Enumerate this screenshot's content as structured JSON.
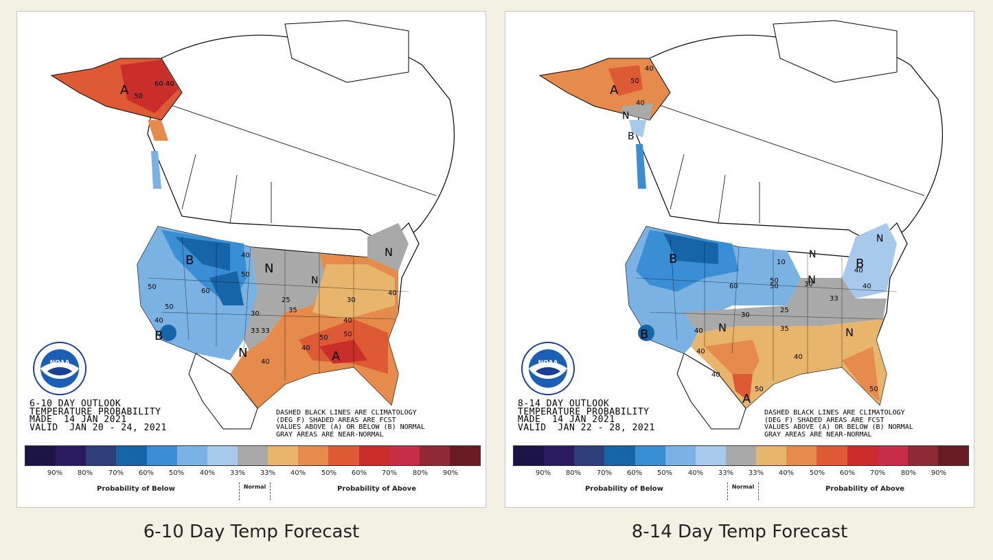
{
  "colors": {
    "below": [
      "#1d1446",
      "#2a1a5e",
      "#2e3e7a",
      "#1765a9",
      "#3a8fd4",
      "#7ab3e3",
      "#a7c9ec"
    ],
    "normal": "#a9a9a9",
    "above": [
      "#e8b56c",
      "#e58b4b",
      "#dd5a34",
      "#c92e2b",
      "#c72d47",
      "#8d2a36",
      "#6a1c24"
    ]
  },
  "legend": {
    "percentages": [
      "90%",
      "80%",
      "70%",
      "60%",
      "50%",
      "40%",
      "33%",
      "33%",
      "40%",
      "50%",
      "60%",
      "70%",
      "80%",
      "90%"
    ],
    "below_label": "Probability of Below",
    "normal_label": "Normal",
    "above_label": "Probability of Above",
    "note_lines": [
      "DASHED BLACK LINES ARE CLIMATOLOGY",
      "(DEG F) SHADED AREAS ARE FCST",
      "VALUES ABOVE (A) OR BELOW (B) NORMAL",
      "GRAY AREAS ARE NEAR-NORMAL"
    ]
  },
  "noaa_label": "NOAA",
  "maps": [
    {
      "caption": "6-10 Day Temp Forecast",
      "outlook_lines": [
        "6-10 DAY OUTLOOK",
        "TEMPERATURE PROBABILITY",
        "MADE  14 JAN 2021",
        "VALID  JAN 20 - 24, 2021"
      ],
      "contour_labels": [
        "40",
        "50",
        "60",
        "40",
        "50",
        "50",
        "60",
        "50",
        "40",
        "30",
        "25",
        "33",
        "35",
        "40",
        "30",
        "40",
        "50",
        "40",
        "33",
        "40",
        "50"
      ],
      "region_letters": [
        "A",
        "B",
        "N",
        "N",
        "N",
        "A",
        "B",
        "N"
      ]
    },
    {
      "caption": "8-14 Day Temp Forecast",
      "outlook_lines": [
        "8-14 DAY OUTLOOK",
        "TEMPERATURE PROBABILITY",
        "MADE  14 JAN 2021",
        "VALID  JAN 22 - 28, 2021"
      ],
      "contour_labels": [
        "40",
        "50",
        "40",
        "50",
        "40",
        "60",
        "50",
        "40",
        "30",
        "25",
        "33",
        "35",
        "40",
        "50",
        "40",
        "50",
        "40",
        "30",
        "10",
        "40"
      ],
      "region_letters": [
        "A",
        "N",
        "B",
        "B",
        "B",
        "N",
        "N",
        "N",
        "N",
        "A",
        "B",
        "N"
      ]
    }
  ]
}
